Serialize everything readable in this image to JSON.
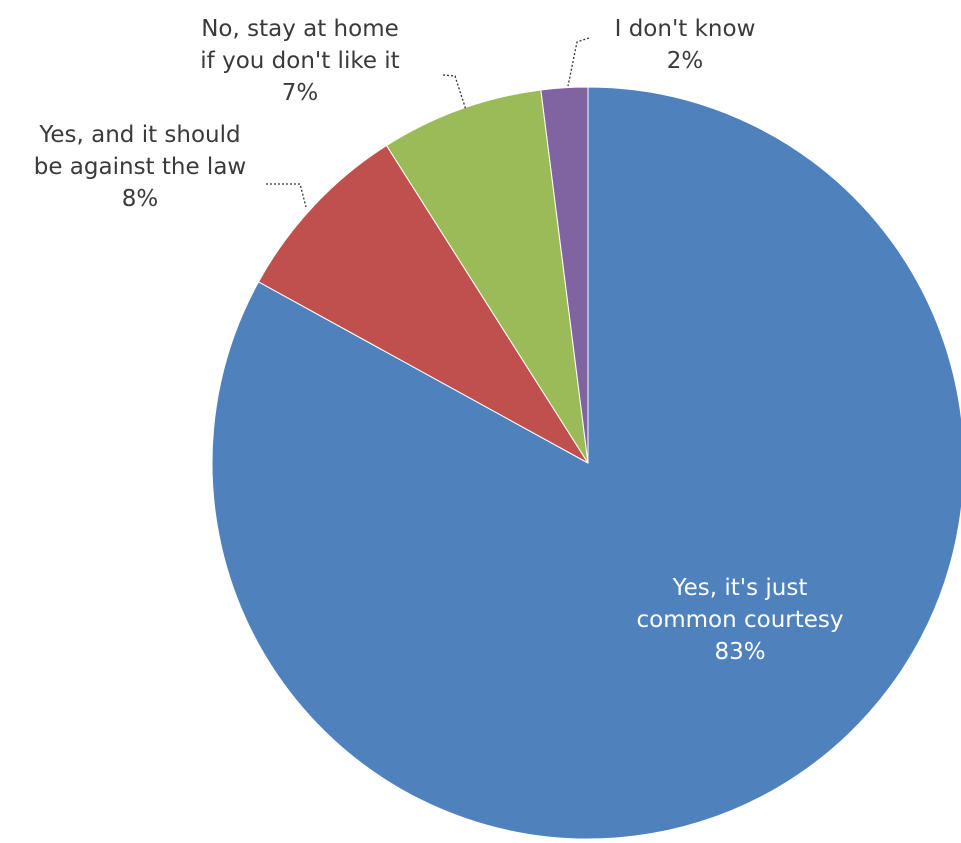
{
  "chart_data": {
    "type": "pie",
    "start_angle_deg": 0,
    "direction": "clockwise",
    "slices": [
      {
        "label_lines": [
          "Yes, it's just",
          "common courtesy"
        ],
        "value": 83,
        "value_text": "83%",
        "color": "#4f81bd",
        "label_placement": "inside"
      },
      {
        "label_lines": [
          "Yes, and it should",
          "be against the law"
        ],
        "value": 8,
        "value_text": "8%",
        "color": "#c0504d",
        "label_placement": "outside-left"
      },
      {
        "label_lines": [
          "No, stay at home",
          "if you don't like it"
        ],
        "value": 7,
        "value_text": "7%",
        "color": "#9bbb59",
        "label_placement": "outside-top"
      },
      {
        "label_lines": [
          "I don't know"
        ],
        "value": 2,
        "value_text": "2%",
        "color": "#8064a2",
        "label_placement": "outside-top"
      }
    ]
  }
}
